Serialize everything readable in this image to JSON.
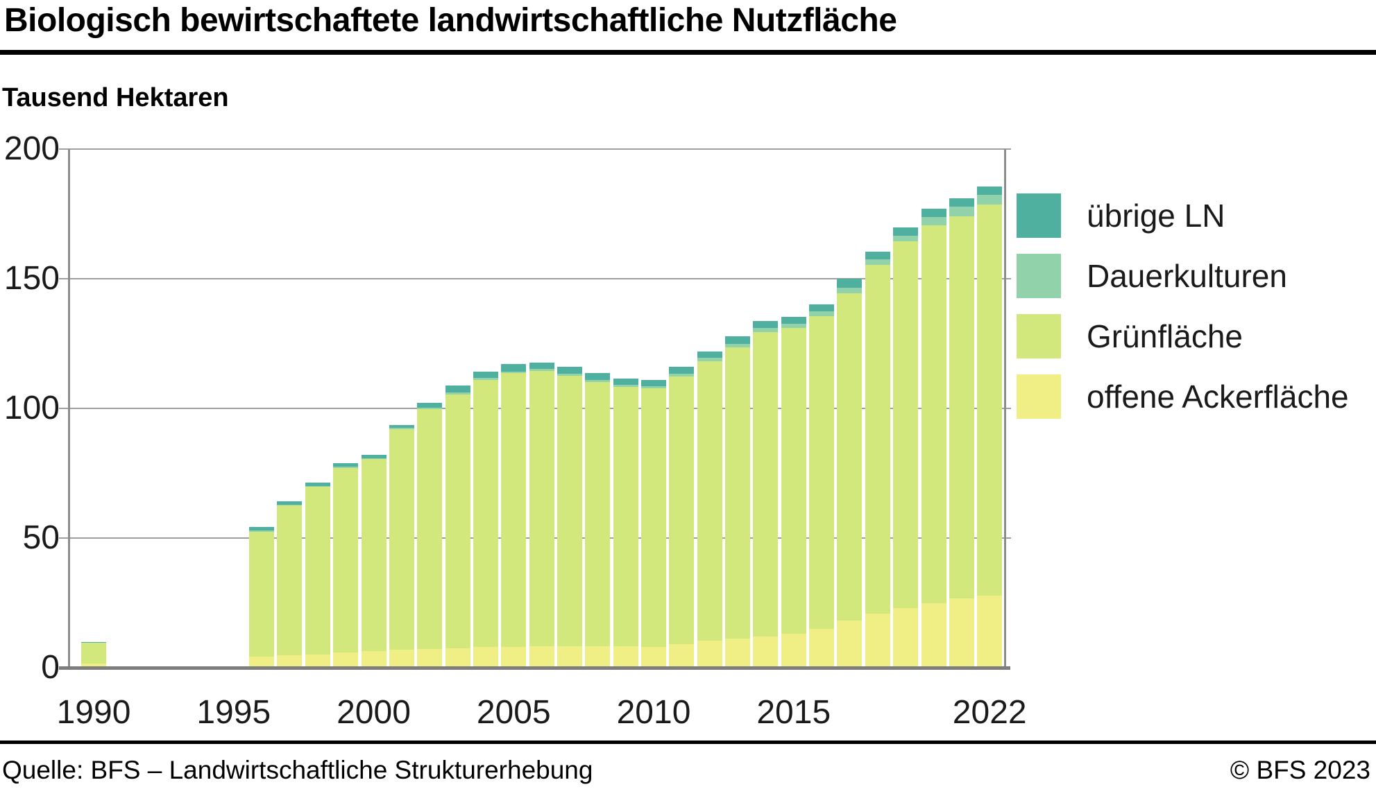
{
  "header": {
    "title": "Biologisch bewirtschaftete landwirtschaftliche Nutzfläche",
    "unit_label": "Tausend Hektaren"
  },
  "footer": {
    "source": "Quelle: BFS – Landwirtschaftliche Strukturerhebung",
    "copyright": "© BFS 2023"
  },
  "colors": {
    "uebrige_ln": "#4fb0a0",
    "dauerkulturen": "#92d2aa",
    "gruenflaeche": "#d2e87c",
    "offene_ackerflaeche": "#f0ef86",
    "gridline": "#9f9f9f",
    "plot_border": "#8c8c8c",
    "axis_baseline": "#7d7d7d",
    "text": "#1a1a1a",
    "rule": "#000000"
  },
  "chart_data": {
    "type": "bar",
    "stacked": true,
    "title": "Biologisch bewirtschaftete landwirtschaftliche Nutzfläche",
    "xlabel": "",
    "ylabel": "Tausend Hektaren",
    "ylim": [
      0,
      200
    ],
    "yticks": [
      0,
      50,
      100,
      150,
      200
    ],
    "xticks": [
      1990,
      1995,
      2000,
      2005,
      2010,
      2015,
      2022
    ],
    "grid": true,
    "legend_position": "right",
    "legend": [
      "übrige LN",
      "Dauerkulturen",
      "Grünfläche",
      "offene Ackerfläche"
    ],
    "categories": [
      1990,
      1996,
      1997,
      1998,
      1999,
      2000,
      2001,
      2002,
      2003,
      2004,
      2005,
      2006,
      2007,
      2008,
      2009,
      2010,
      2011,
      2012,
      2013,
      2014,
      2015,
      2016,
      2017,
      2018,
      2019,
      2020,
      2021,
      2022
    ],
    "series": [
      {
        "name": "offene Ackerfläche",
        "color": "#f0ef86",
        "values": [
          1.5,
          4.2,
          4.7,
          5.2,
          5.9,
          6.3,
          7.0,
          7.3,
          7.6,
          7.9,
          8.1,
          8.2,
          8.2,
          8.2,
          8.2,
          8.1,
          9.1,
          10.3,
          11.2,
          12.1,
          13.2,
          14.9,
          18.1,
          20.9,
          23.0,
          24.9,
          26.8,
          27.7
        ]
      },
      {
        "name": "Grünfläche",
        "color": "#d2e87c",
        "values": [
          8.0,
          48.3,
          57.8,
          64.5,
          71.2,
          74.1,
          84.9,
          92.4,
          97.8,
          103.1,
          105.5,
          106.3,
          104.5,
          102.0,
          100.2,
          99.7,
          103.2,
          107.8,
          112.3,
          117.3,
          117.8,
          120.7,
          126.3,
          134.4,
          141.5,
          145.8,
          147.2,
          150.8
        ]
      },
      {
        "name": "Dauerkulturen",
        "color": "#92d2aa",
        "values": [
          0.3,
          0.4,
          0.4,
          0.4,
          0.4,
          0.4,
          0.5,
          0.6,
          0.7,
          0.7,
          0.7,
          0.7,
          0.7,
          0.7,
          0.7,
          0.7,
          1.2,
          1.3,
          1.3,
          1.5,
          1.6,
          1.8,
          2.2,
          2.3,
          2.2,
          3.0,
          3.9,
          3.8
        ]
      },
      {
        "name": "übrige LN",
        "color": "#4fb0a0",
        "values": [
          0.2,
          1.4,
          1.4,
          1.2,
          1.4,
          1.4,
          1.3,
          1.9,
          2.6,
          2.6,
          2.7,
          2.4,
          2.7,
          2.7,
          2.5,
          2.4,
          2.5,
          2.6,
          3.0,
          2.8,
          2.6,
          2.7,
          3.4,
          2.9,
          3.0,
          3.3,
          3.1,
          3.3
        ]
      }
    ],
    "totals": [
      10.0,
      54.3,
      64.3,
      71.3,
      78.9,
      82.2,
      93.7,
      102.2,
      108.7,
      114.3,
      117.0,
      117.6,
      116.1,
      113.6,
      111.6,
      110.9,
      116.0,
      122.0,
      127.8,
      133.7,
      135.2,
      140.1,
      150.0,
      160.5,
      169.7,
      177.0,
      181.0,
      185.6
    ]
  }
}
